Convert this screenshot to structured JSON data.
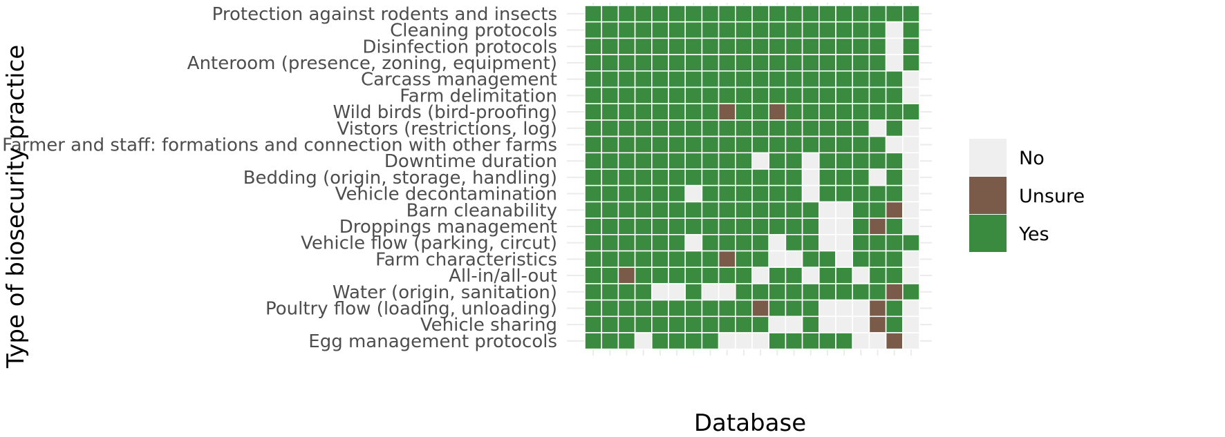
{
  "chart_data": {
    "type": "heatmap",
    "xlabel": "Database",
    "ylabel": "Type of biosecurity practice",
    "categories": [
      "Protection against rodents and insects",
      "Cleaning protocols",
      "Disinfection protocols",
      "Anteroom (presence, zoning, equipment)",
      "Carcass management",
      "Farm delimitation",
      "Wild birds (bird-proofing)",
      "Vistors (restrictions, log)",
      "Farmer and staff: formations and connection with other farms",
      "Downtime duration",
      "Bedding (origin, storage, handling)",
      "Vehicle decontamination",
      "Barn cleanability",
      "Droppings management",
      "Vehicle flow (parking, circut)",
      "Farm characteristics",
      "All-in/all-out",
      "Water (origin, sanitation)",
      "Poultry flow (loading, unloading)",
      "Vehicle sharing",
      "Egg management protocols"
    ],
    "n_columns": 20,
    "legend": {
      "entries": [
        "No",
        "Unsure",
        "Yes"
      ],
      "colors": {
        "No": "#efefef",
        "Unsure": "#7a5a48",
        "Yes": "#3a8a3f"
      },
      "placement": "right"
    },
    "grid": true,
    "values": [
      "YYYYYYYYYYYYYYYYYYYY",
      "YYYYYYYYYYYYYYYYYYNY",
      "YYYYYYYYYYYYYYYYYYNY",
      "YYYYYYYYYYYYYYYYYYNY",
      "YYYYYYYYYYYYYYYYYYYN",
      "YYYYYYYYYYYYYYYYYYYN",
      "YYYYYYYYUYYUYYYYYYYY",
      "YYYYYYYYYYYYYYYYYNYN",
      "YYYYYYYYYYYYYYYYYYNN",
      "YYYYYYYYYYNYYNYYYYYN",
      "YYYYYYYYYYYYYNYYYNYN",
      "YYYYYYNYYYYYYNYYYYYN",
      "YYYYYYYYYYYYYYNNYYUN",
      "YYYYYYYYYYYYYYNNYUYN",
      "YYYYYYNYYYYNYYNNYYYY",
      "YYYYYYYYUYYNNYYNYYYN",
      "YYUYYYYYYYNYYNYYNYYN",
      "YYYYNNYNNYYYYYYYYYUY",
      "YYYYYYYYYYUYYYNNNUYN",
      "YYYYYYYYYYYNNYNNNUYN",
      "YYYNYYYYNNNYYYYYNNUN"
    ]
  }
}
